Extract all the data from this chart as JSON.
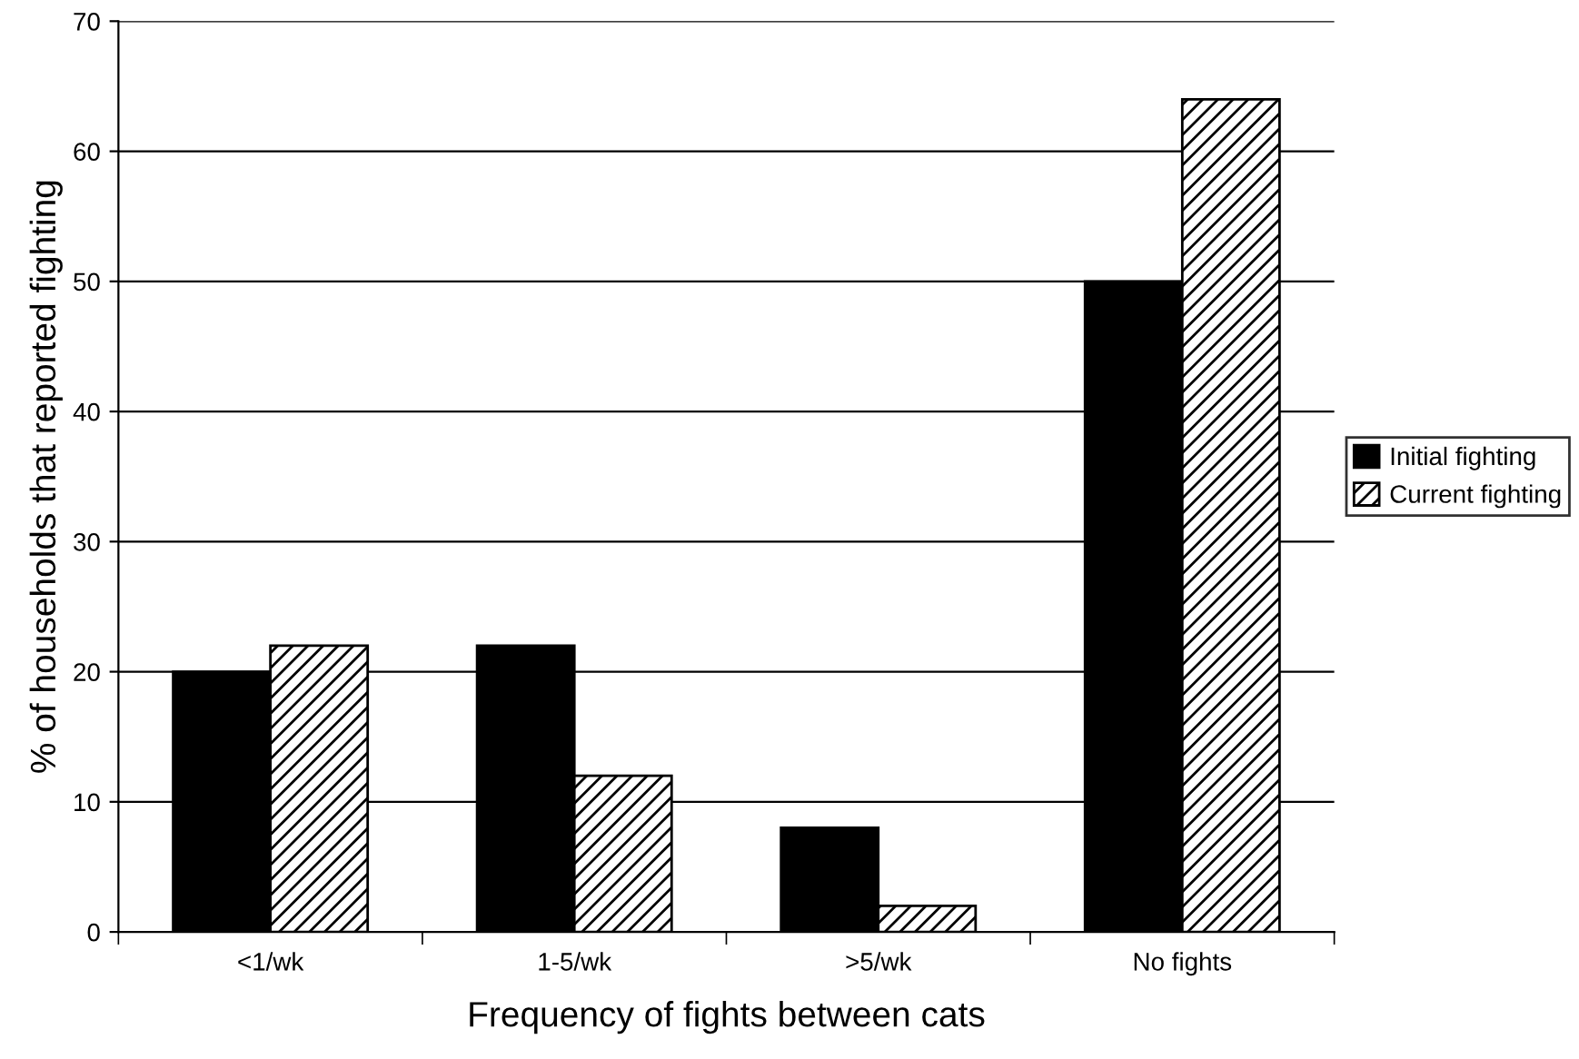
{
  "chart_data": {
    "type": "bar",
    "xlabel": "Frequency of fights between cats",
    "ylabel": "% of households that reported fighting",
    "categories": [
      "<1/wk",
      "1-5/wk",
      ">5/wk",
      "No fights"
    ],
    "series": [
      {
        "name": "Initial fighting",
        "color": "#000000",
        "values": [
          20,
          22,
          8,
          50
        ]
      },
      {
        "name": "Current fighting",
        "color": "#000000",
        "values": [
          22,
          12,
          2,
          64
        ]
      }
    ],
    "ylim": [
      0,
      70
    ],
    "yticks": [
      0,
      10,
      20,
      30,
      40,
      50,
      60,
      70
    ],
    "grid": "y",
    "legend": "right"
  }
}
